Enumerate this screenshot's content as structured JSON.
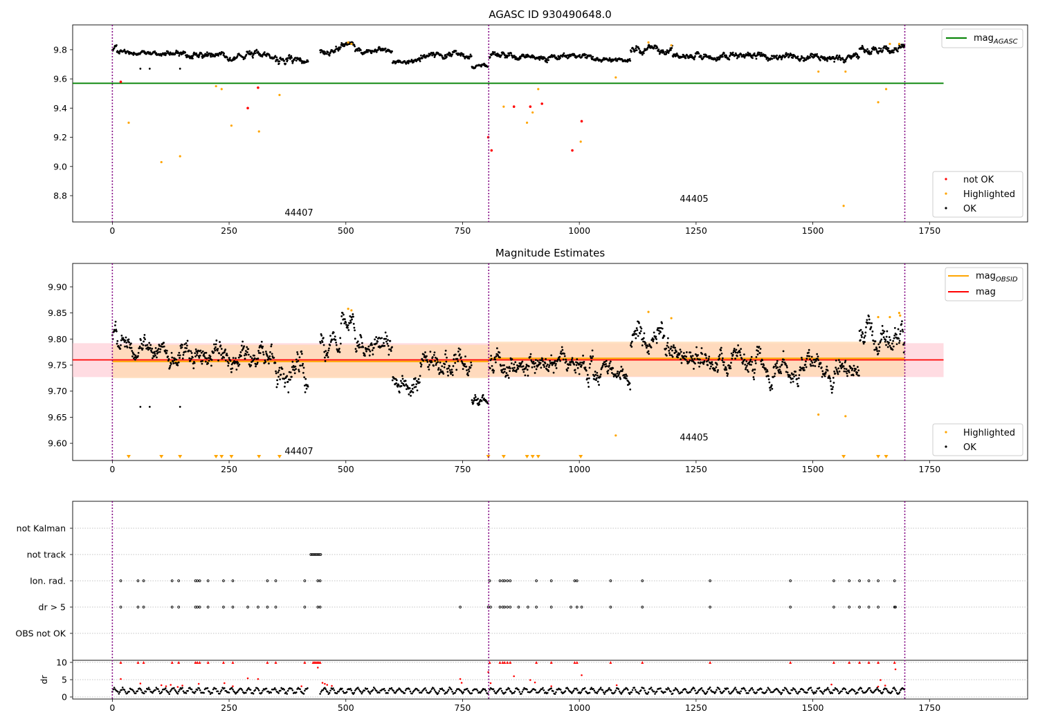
{
  "figure": {
    "titles": [
      "AGASC ID 930490648.0",
      "Magnitude Estimates"
    ],
    "obsid_labels": [
      "44407",
      "44405"
    ],
    "boundaries": [
      0,
      806,
      1697
    ],
    "x_ticks": [
      0,
      250,
      500,
      750,
      1000,
      1250,
      1500,
      1750
    ],
    "colors": {
      "ok": "#000000",
      "not_ok": "#ff0000",
      "highlighted": "#ffa500",
      "agasc": "#008000",
      "mag": "#ff0000",
      "mag_obsid": "#ffa500",
      "band_mag": "#ffc0cb",
      "band_obs": "#ffdab0",
      "boundary": "#800080"
    }
  },
  "chart_data": [
    {
      "type": "scatter",
      "title": "AGASC ID 930490648.0",
      "xlim": [
        -85,
        1960
      ],
      "ylim": [
        8.62,
        9.97
      ],
      "y_ticks": [
        8.8,
        9.0,
        9.2,
        9.4,
        9.6,
        9.8
      ],
      "y_tick_labels": [
        "8.8",
        "9.0",
        "9.2",
        "9.4",
        "9.6",
        "9.8"
      ],
      "mag_agasc": 9.57,
      "legend_top": [
        "mag_AGASC"
      ],
      "legend_top_main": "mag",
      "legend_top_sub": "AGASC",
      "legend_bottom": [
        "not OK",
        "Highlighted",
        "OK"
      ],
      "series": [
        {
          "name": "not OK",
          "points": [
            [
              18,
              9.58
            ],
            [
              290,
              9.4
            ],
            [
              312,
              9.54
            ],
            [
              805,
              9.2
            ],
            [
              812,
              9.11
            ],
            [
              860,
              9.41
            ],
            [
              895,
              9.41
            ],
            [
              920,
              9.43
            ],
            [
              985,
              9.11
            ],
            [
              1005,
              9.31
            ]
          ]
        },
        {
          "name": "Highlighted",
          "points": [
            [
              35,
              9.3
            ],
            [
              105,
              9.03
            ],
            [
              145,
              9.07
            ],
            [
              222,
              9.55
            ],
            [
              234,
              9.53
            ],
            [
              255,
              9.28
            ],
            [
              314,
              9.24
            ],
            [
              358,
              9.49
            ],
            [
              505,
              9.85
            ],
            [
              512,
              9.84
            ],
            [
              838,
              9.41
            ],
            [
              888,
              9.3
            ],
            [
              900,
              9.37
            ],
            [
              912,
              9.53
            ],
            [
              1003,
              9.17
            ],
            [
              1078,
              9.61
            ],
            [
              1148,
              9.85
            ],
            [
              1197,
              9.83
            ],
            [
              1512,
              9.65
            ],
            [
              1566,
              8.73
            ],
            [
              1570,
              9.65
            ],
            [
              1640,
              9.44
            ],
            [
              1657,
              9.53
            ],
            [
              1665,
              9.84
            ],
            [
              1685,
              9.84
            ]
          ]
        }
      ],
      "ok_segments": [
        {
          "range": [
            0,
            10
          ],
          "mean": 9.81,
          "amp": 0.02
        },
        {
          "range": [
            10,
            120
          ],
          "mean": 9.785,
          "amp": 0.02
        },
        {
          "range": [
            120,
            350
          ],
          "mean": 9.765,
          "amp": 0.025
        },
        {
          "range": [
            350,
            420
          ],
          "mean": 9.73,
          "amp": 0.035
        },
        {
          "range": [
            445,
            490
          ],
          "mean": 9.79,
          "amp": 0.03
        },
        {
          "range": [
            490,
            520
          ],
          "mean": 9.83,
          "amp": 0.02
        },
        {
          "range": [
            520,
            600
          ],
          "mean": 9.79,
          "amp": 0.025
        },
        {
          "range": [
            600,
            660
          ],
          "mean": 9.72,
          "amp": 0.02
        },
        {
          "range": [
            660,
            770
          ],
          "mean": 9.755,
          "amp": 0.025
        },
        {
          "range": [
            770,
            805
          ],
          "mean": 9.685,
          "amp": 0.015
        },
        {
          "range": [
            808,
            1030
          ],
          "mean": 9.755,
          "amp": 0.025
        },
        {
          "range": [
            1030,
            1110
          ],
          "mean": 9.73,
          "amp": 0.02
        },
        {
          "range": [
            1110,
            1200
          ],
          "mean": 9.8,
          "amp": 0.03
        },
        {
          "range": [
            1200,
            1400
          ],
          "mean": 9.76,
          "amp": 0.025
        },
        {
          "range": [
            1400,
            1600
          ],
          "mean": 9.745,
          "amp": 0.025
        },
        {
          "range": [
            1600,
            1697
          ],
          "mean": 9.8,
          "amp": 0.03
        }
      ],
      "ok_outliers": [
        [
          60,
          9.67
        ],
        [
          80,
          9.67
        ],
        [
          145,
          9.67
        ]
      ]
    },
    {
      "type": "scatter",
      "title": "Magnitude Estimates",
      "xlim": [
        -85,
        1960
      ],
      "ylim": [
        9.567,
        9.945
      ],
      "y_ticks": [
        9.6,
        9.65,
        9.7,
        9.75,
        9.8,
        9.85,
        9.9
      ],
      "y_tick_labels": [
        "9.60",
        "9.65",
        "9.70",
        "9.75",
        "9.80",
        "9.85",
        "9.90"
      ],
      "mag": 9.76,
      "mag_band": [
        9.727,
        9.792
      ],
      "mag_obsid": [
        {
          "range": [
            0,
            806
          ],
          "value": 9.757,
          "band": [
            9.725,
            9.789
          ]
        },
        {
          "range": [
            806,
            1697
          ],
          "value": 9.763,
          "band": [
            9.728,
            9.795
          ]
        }
      ],
      "legend_top": [
        "mag_OBSID",
        "mag"
      ],
      "legend_top_main": "mag",
      "legend_top_sub": "OBSID",
      "legend_bottom": [
        "Highlighted",
        "OK"
      ],
      "highlighted_points": [
        [
          505,
          9.858
        ],
        [
          512,
          9.855
        ],
        [
          1148,
          9.852
        ],
        [
          1197,
          9.84
        ],
        [
          1078,
          9.615
        ],
        [
          1512,
          9.655
        ],
        [
          1570,
          9.652
        ],
        [
          1640,
          9.842
        ],
        [
          1665,
          9.842
        ],
        [
          1685,
          9.85
        ],
        [
          1687,
          9.845
        ]
      ],
      "highlighted_markers_x": [
        35,
        105,
        145,
        222,
        234,
        255,
        314,
        358,
        805,
        838,
        888,
        900,
        912,
        1003,
        1566,
        1640,
        1657
      ]
    },
    {
      "type": "scatter",
      "categories": [
        "not Kalman",
        "not track",
        "Ion. rad.",
        "dr > 5",
        "OBS not OK"
      ],
      "flags": {
        "not track": [
          425,
          428,
          431,
          434,
          437,
          440,
          443,
          446
        ],
        "Ion. rad.": [
          18,
          55,
          67,
          128,
          142,
          178,
          182,
          187,
          205,
          238,
          258,
          332,
          350,
          412,
          440,
          445,
          808,
          830,
          836,
          840,
          846,
          852,
          908,
          940,
          990,
          995,
          1067,
          1135,
          1280,
          1452,
          1545,
          1578,
          1600,
          1620,
          1640,
          1675
        ],
        "dr > 5": [
          18,
          55,
          67,
          128,
          142,
          178,
          182,
          187,
          205,
          238,
          258,
          290,
          312,
          332,
          350,
          412,
          440,
          445,
          745,
          805,
          810,
          830,
          836,
          840,
          846,
          852,
          870,
          890,
          908,
          940,
          982,
          995,
          1005,
          1067,
          1135,
          1280,
          1452,
          1545,
          1578,
          1600,
          1620,
          1640,
          1675,
          1677
        ]
      },
      "xlim": [
        -85,
        1960
      ]
    },
    {
      "type": "scatter",
      "ylabel": "dr",
      "xlim": [
        -85,
        1960
      ],
      "ylim": [
        -0.6,
        10.6
      ],
      "y_ticks": [
        0,
        5,
        10
      ],
      "y_tick_labels": [
        "0",
        "5",
        "10"
      ],
      "clipped_at_10_x": [
        18,
        55,
        67,
        128,
        142,
        178,
        182,
        187,
        205,
        238,
        258,
        332,
        350,
        412,
        430,
        433,
        436,
        439,
        442,
        445,
        808,
        830,
        836,
        840,
        846,
        852,
        908,
        940,
        990,
        995,
        1067,
        1135,
        1280,
        1452,
        1545,
        1578,
        1600,
        1620,
        1640,
        1675
      ],
      "red_points": [
        [
          18,
          5.2
        ],
        [
          60,
          3.9
        ],
        [
          105,
          3.4
        ],
        [
          115,
          3.1
        ],
        [
          125,
          3.5
        ],
        [
          140,
          2.9
        ],
        [
          150,
          3.3
        ],
        [
          185,
          3.8
        ],
        [
          240,
          4.0
        ],
        [
          258,
          3.1
        ],
        [
          290,
          5.4
        ],
        [
          312,
          5.2
        ],
        [
          405,
          3.1
        ],
        [
          440,
          8.5
        ],
        [
          450,
          4.1
        ],
        [
          455,
          3.8
        ],
        [
          460,
          3.5
        ],
        [
          470,
          3.2
        ],
        [
          745,
          5.2
        ],
        [
          748,
          4.1
        ],
        [
          805,
          7.2
        ],
        [
          810,
          4.0
        ],
        [
          860,
          6.0
        ],
        [
          895,
          4.9
        ],
        [
          905,
          4.2
        ],
        [
          940,
          3.1
        ],
        [
          1005,
          6.3
        ],
        [
          1080,
          3.4
        ],
        [
          1540,
          3.6
        ],
        [
          1640,
          3.0
        ],
        [
          1645,
          4.9
        ],
        [
          1655,
          3.3
        ],
        [
          1677,
          8.0
        ]
      ],
      "ok_mean": 1.8,
      "ok_amp": 0.7
    }
  ]
}
